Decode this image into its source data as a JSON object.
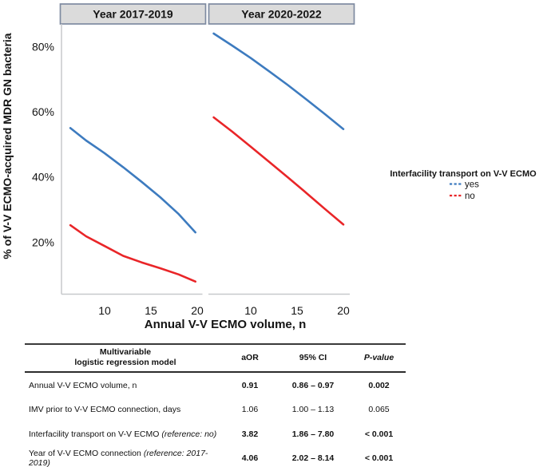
{
  "chart_data": {
    "type": "line",
    "xlabel": "Annual V-V ECMO volume, n",
    "ylabel": "% of V-V ECMO-acquired MDR GN bacteria",
    "x_ticks": [
      10,
      15,
      20
    ],
    "y_ticks": [
      20,
      40,
      60,
      80
    ],
    "y_tick_suffix": "%",
    "xlim": [
      5.3,
      21
    ],
    "ylim": [
      4,
      87
    ],
    "grid": "off",
    "legend": {
      "title": "Interfacility transport on V-V ECMO",
      "position": "right",
      "entries": [
        {
          "label": "yes",
          "color": "#3D7BBF"
        },
        {
          "label": "no",
          "color": "#E92528"
        }
      ]
    },
    "panels": [
      {
        "label": "Year 2017-2019",
        "series": [
          {
            "name": "yes",
            "color": "#3D7BBF",
            "points": [
              [
                6.3,
                55
              ],
              [
                8,
                51.2
              ],
              [
                10,
                47.3
              ],
              [
                12,
                43
              ],
              [
                14,
                38.5
              ],
              [
                16,
                33.8
              ],
              [
                18,
                28.6
              ],
              [
                19.8,
                23
              ]
            ]
          },
          {
            "name": "no",
            "color": "#E92528",
            "points": [
              [
                6.3,
                25.2
              ],
              [
                8,
                21.8
              ],
              [
                10,
                18.8
              ],
              [
                12,
                15.8
              ],
              [
                14,
                13.8
              ],
              [
                16,
                12
              ],
              [
                18,
                10.1
              ],
              [
                19.8,
                7.9
              ]
            ]
          }
        ]
      },
      {
        "label": "Year 2020-2022",
        "series": [
          {
            "name": "yes",
            "color": "#3D7BBF",
            "points": [
              [
                6,
                84
              ],
              [
                8,
                80.3
              ],
              [
                10,
                76.5
              ],
              [
                12,
                72.4
              ],
              [
                14,
                68.2
              ],
              [
                16,
                63.8
              ],
              [
                18,
                59.3
              ],
              [
                20,
                54.7
              ]
            ]
          },
          {
            "name": "no",
            "color": "#E92528",
            "points": [
              [
                6,
                58.3
              ],
              [
                8,
                53.9
              ],
              [
                10,
                49.3
              ],
              [
                12,
                44.6
              ],
              [
                14,
                39.9
              ],
              [
                16,
                35.1
              ],
              [
                18,
                30.2
              ],
              [
                20,
                25.4
              ]
            ]
          }
        ]
      }
    ]
  },
  "table": {
    "header": {
      "model_line1": "Multivariable",
      "model_line2": "logistic regression model",
      "aor": "aOR",
      "ci": "95% CI",
      "p": "P-value"
    },
    "rows": [
      {
        "label": "Annual V-V ECMO volume, n",
        "ref": "",
        "aor": "0.91",
        "ci": "0.86 – 0.97",
        "p": "0.002",
        "bold": true
      },
      {
        "label": "IMV prior to V-V ECMO connection, days",
        "ref": "",
        "aor": "1.06",
        "ci": "1.00 – 1.13",
        "p": "0.065",
        "bold": false
      },
      {
        "label": "Interfacility transport on V-V ECMO",
        "ref": "(reference: no)",
        "aor": "3.82",
        "ci": "1.86 – 7.80",
        "p": "< 0.001",
        "bold": true
      },
      {
        "label": "Year of V-V ECMO connection",
        "ref": "(reference: 2017-2019)",
        "aor": "4.06",
        "ci": "2.02 – 8.14",
        "p": "< 0.001",
        "bold": true
      }
    ]
  },
  "colors": {
    "yes_line": "#3D7BBF",
    "no_line": "#E92528",
    "strip_fill": "#dbdbdb",
    "strip_border": "#7e8ba1",
    "axis_line": "#c7c9cc"
  }
}
